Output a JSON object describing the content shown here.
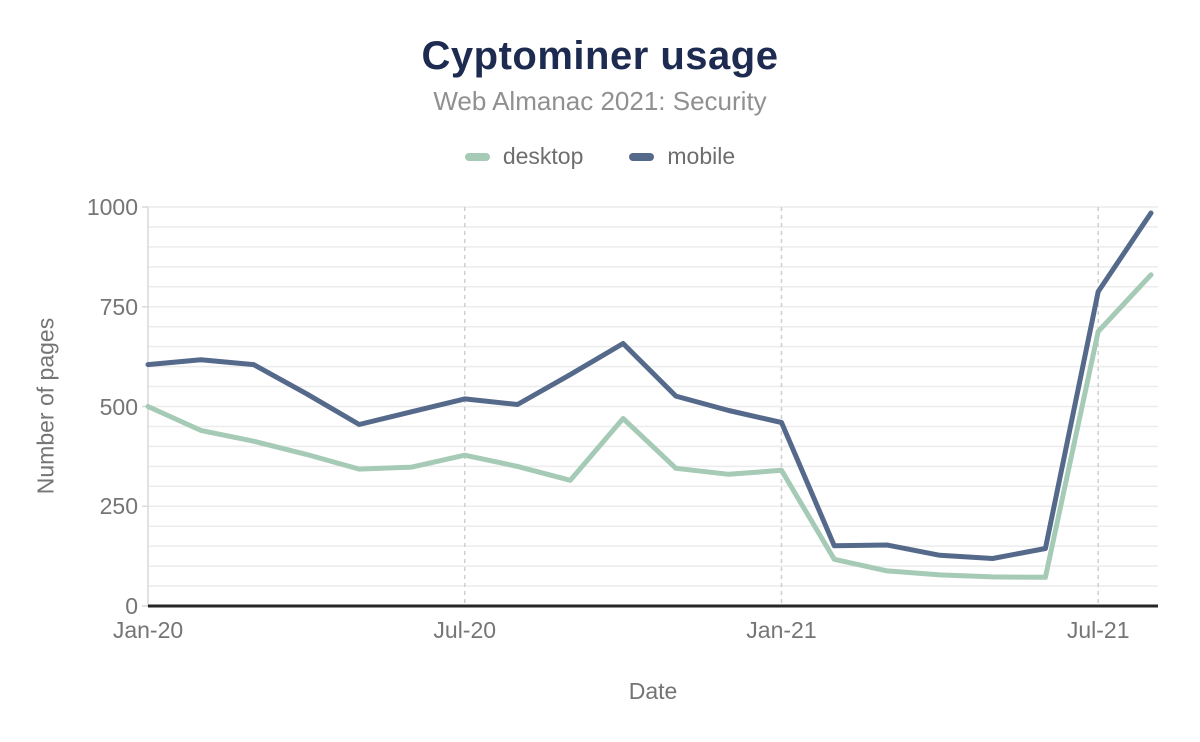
{
  "colors": {
    "title": "#1e2b50",
    "subtitle": "#909090",
    "legend_text": "#6e6e6e",
    "axis_text": "#757575",
    "axis_line": "#262626",
    "grid_minor": "#ececec",
    "grid_vertical_dashed": "#cfcfcf",
    "y_axis_line": "#d9d9d9",
    "desktop_series": "#a5cab5",
    "mobile_series": "#55698b"
  },
  "chart_data": {
    "type": "line",
    "title": "Cyptominer usage",
    "subtitle": "Web Almanac 2021: Security",
    "xlabel": "Date",
    "ylabel": "Number of pages",
    "ylim": [
      0,
      1000
    ],
    "y_ticks": [
      0,
      250,
      500,
      750,
      1000
    ],
    "minor_grid_step": 50,
    "grid": "on",
    "legend_position": "top",
    "x_tick_indices": [
      0,
      6,
      12,
      18
    ],
    "x_tick_labels": [
      "Jan-20",
      "Jul-20",
      "Jan-21",
      "Jul-21"
    ],
    "categories": [
      "Jan-20",
      "Feb-20",
      "Mar-20",
      "Apr-20",
      "May-20",
      "Jun-20",
      "Jul-20",
      "Aug-20",
      "Sep-20",
      "Oct-20",
      "Nov-20",
      "Dec-20",
      "Jan-21",
      "Feb-21",
      "Mar-21",
      "Apr-21",
      "May-21",
      "Jun-21",
      "Jul-21",
      "Aug-21"
    ],
    "series": [
      {
        "name": "desktop",
        "color": "#a5cab5",
        "values": [
          500,
          440,
          413,
          380,
          343,
          348,
          378,
          350,
          315,
          470,
          345,
          330,
          340,
          117,
          88,
          78,
          73,
          72,
          688,
          830
        ]
      },
      {
        "name": "mobile",
        "color": "#55698b",
        "values": [
          605,
          617,
          605,
          532,
          455,
          487,
          519,
          505,
          580,
          658,
          526,
          490,
          460,
          151,
          153,
          127,
          119,
          144,
          788,
          985
        ]
      }
    ]
  }
}
